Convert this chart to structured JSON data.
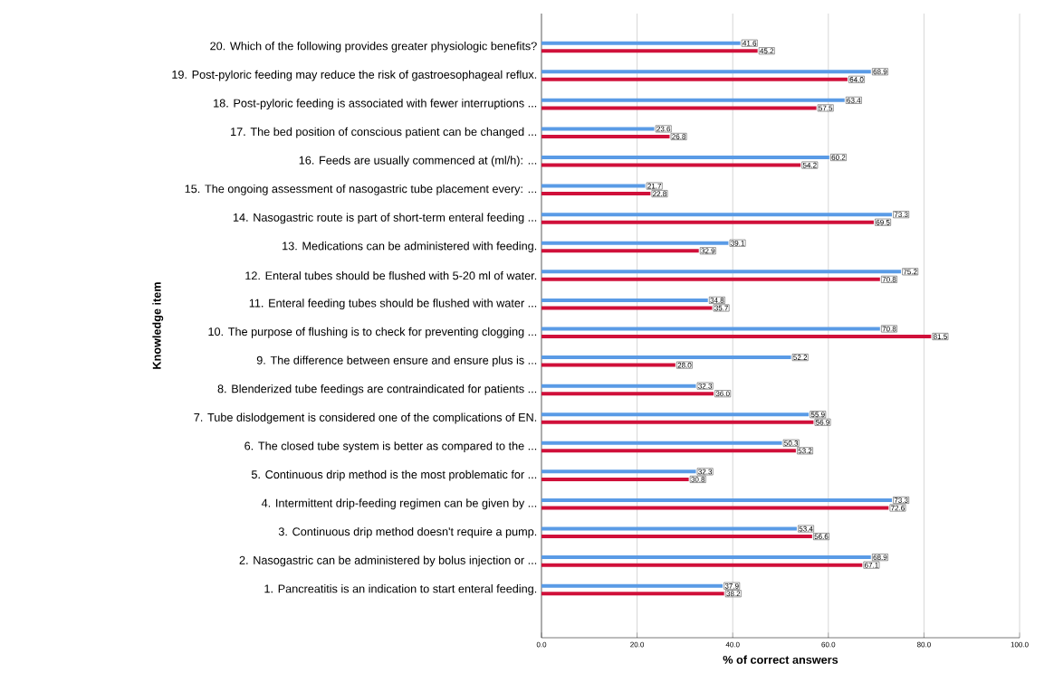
{
  "chart_data": {
    "type": "bar",
    "orientation": "horizontal",
    "xlabel": "% of correct answers",
    "ylabel": "Knowledge item",
    "categories": [
      "20. Which of the following provides greater physiologic benefits?",
      "19. Post-pyloric feeding may reduce the risk of gastroesophageal reflux.",
      "18. Post-pyloric feeding is associated with fewer interruptions ...",
      "17. The bed position of conscious patient can be changed ...",
      "16. Feeds are usually commenced at (ml/h): ...",
      "15. The ongoing assessment of nasogastric tube placement every: ...",
      "14. Nasogastric route is part of short-term enteral feeding ...",
      "13. Medications can be administered with feeding.",
      "12. Enteral tubes should be flushed with 5-20 ml of water.",
      "11. Enteral feeding tubes should be flushed with water ...",
      "10. The purpose of flushing is to check for preventing clogging ...",
      "9. The difference between ensure and ensure plus is ...",
      "8. Blenderized tube feedings are contraindicated for patients ...",
      "7. Tube dislodgement is considered one of the complications of EN.",
      "6. The closed tube system is better as compared to the ...",
      "5. Continuous drip method is the most problematic for ...",
      "4. Intermittent drip-feeding regimen can be given by ...",
      "3. Continuous drip method doesn't require a pump.",
      "2. Nasogastric can be administered by bolus injection or ...",
      "1. Pancreatitis is an indication to start enteral feeding."
    ],
    "series": [
      {
        "color": "#5a9be6",
        "values": [
          41.6,
          68.9,
          63.4,
          23.6,
          60.2,
          21.7,
          73.3,
          39.1,
          75.2,
          34.8,
          70.8,
          52.2,
          32.3,
          55.9,
          50.3,
          32.3,
          73.3,
          53.4,
          68.9,
          37.9
        ],
        "value_labels": [
          "41.6",
          "68.9",
          "63.4",
          "23.6",
          "60.2",
          "21.7",
          "73.3",
          "39.1",
          "75.2",
          "34.8",
          "70.8",
          "52.2",
          "32.3",
          "55.9",
          "50.3",
          "32.3",
          "73.3",
          "53.4",
          "68.9",
          "37.9"
        ]
      },
      {
        "color": "#d0103a",
        "values": [
          45.2,
          64.0,
          57.5,
          26.8,
          54.2,
          22.8,
          69.5,
          32.9,
          70.8,
          35.7,
          81.5,
          28.0,
          36.0,
          56.9,
          53.2,
          30.8,
          72.6,
          56.6,
          67.1,
          38.2
        ],
        "value_labels": [
          "45.2",
          "64.0",
          "57.5",
          "26.8",
          "54.2",
          "22.8",
          "69.5",
          "32.9",
          "70.8",
          "35.7",
          "81.5",
          "28.0",
          "36.0",
          "56.9",
          "53.2",
          "30.8",
          "72.6",
          "56.6",
          "67.1",
          "38.2"
        ]
      }
    ],
    "xlim": [
      0,
      100
    ],
    "xticks": [
      {
        "value": 0,
        "label": "0.0"
      },
      {
        "value": 20,
        "label": "20.0"
      },
      {
        "value": 40,
        "label": "40.0"
      },
      {
        "value": 60,
        "label": "60.0"
      },
      {
        "value": 80,
        "label": "80.0"
      },
      {
        "value": 100,
        "label": "100.0"
      }
    ],
    "grid": "x"
  }
}
